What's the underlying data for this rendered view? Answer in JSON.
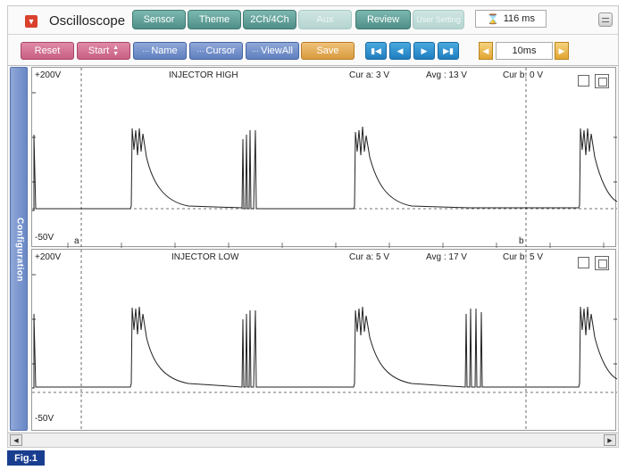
{
  "header": {
    "title": "Oscilloscope",
    "tabs": [
      {
        "label": "Sensor"
      },
      {
        "label": "Theme"
      },
      {
        "label": "2Ch/4Ch"
      },
      {
        "label": "Aux"
      },
      {
        "label": "Review"
      },
      {
        "label": "User Setting"
      }
    ],
    "sample_time": "116 ms",
    "hourglass_icon": "hourglass-icon",
    "menu_icon": "menu-icon"
  },
  "toolbar": {
    "reset_label": "Reset",
    "start_label": "Start",
    "name_label": "Name",
    "cursor_label": "Cursor",
    "viewall_label": "ViewAll",
    "save_label": "Save",
    "nav_icons": [
      "first-icon",
      "prev-icon",
      "next-icon",
      "last-icon"
    ],
    "timebase": "10ms"
  },
  "sidebar": {
    "label": "Configuration"
  },
  "channels": [
    {
      "name": "INJECTOR HIGH",
      "y_max_label": "+200V",
      "y_min_label": "-50V",
      "cur_a": "Cur a: 3 V",
      "avg": "Avg  : 13 V",
      "cur_b": "Cur b: 0 V",
      "marker_a": "a",
      "marker_b": "b"
    },
    {
      "name": "INJECTOR LOW",
      "y_max_label": "+200V",
      "y_min_label": "-50V",
      "cur_a": "Cur a: 5 V",
      "avg": "Avg  : 17 V",
      "cur_b": "Cur b: 5 V"
    }
  ],
  "figure": {
    "caption": "Fig.1"
  },
  "colors": {
    "accent_teal": "#5f9f98",
    "accent_pink": "#c85f82",
    "accent_blue": "#5f7fc0",
    "figure_label": "#1a3e8f"
  }
}
